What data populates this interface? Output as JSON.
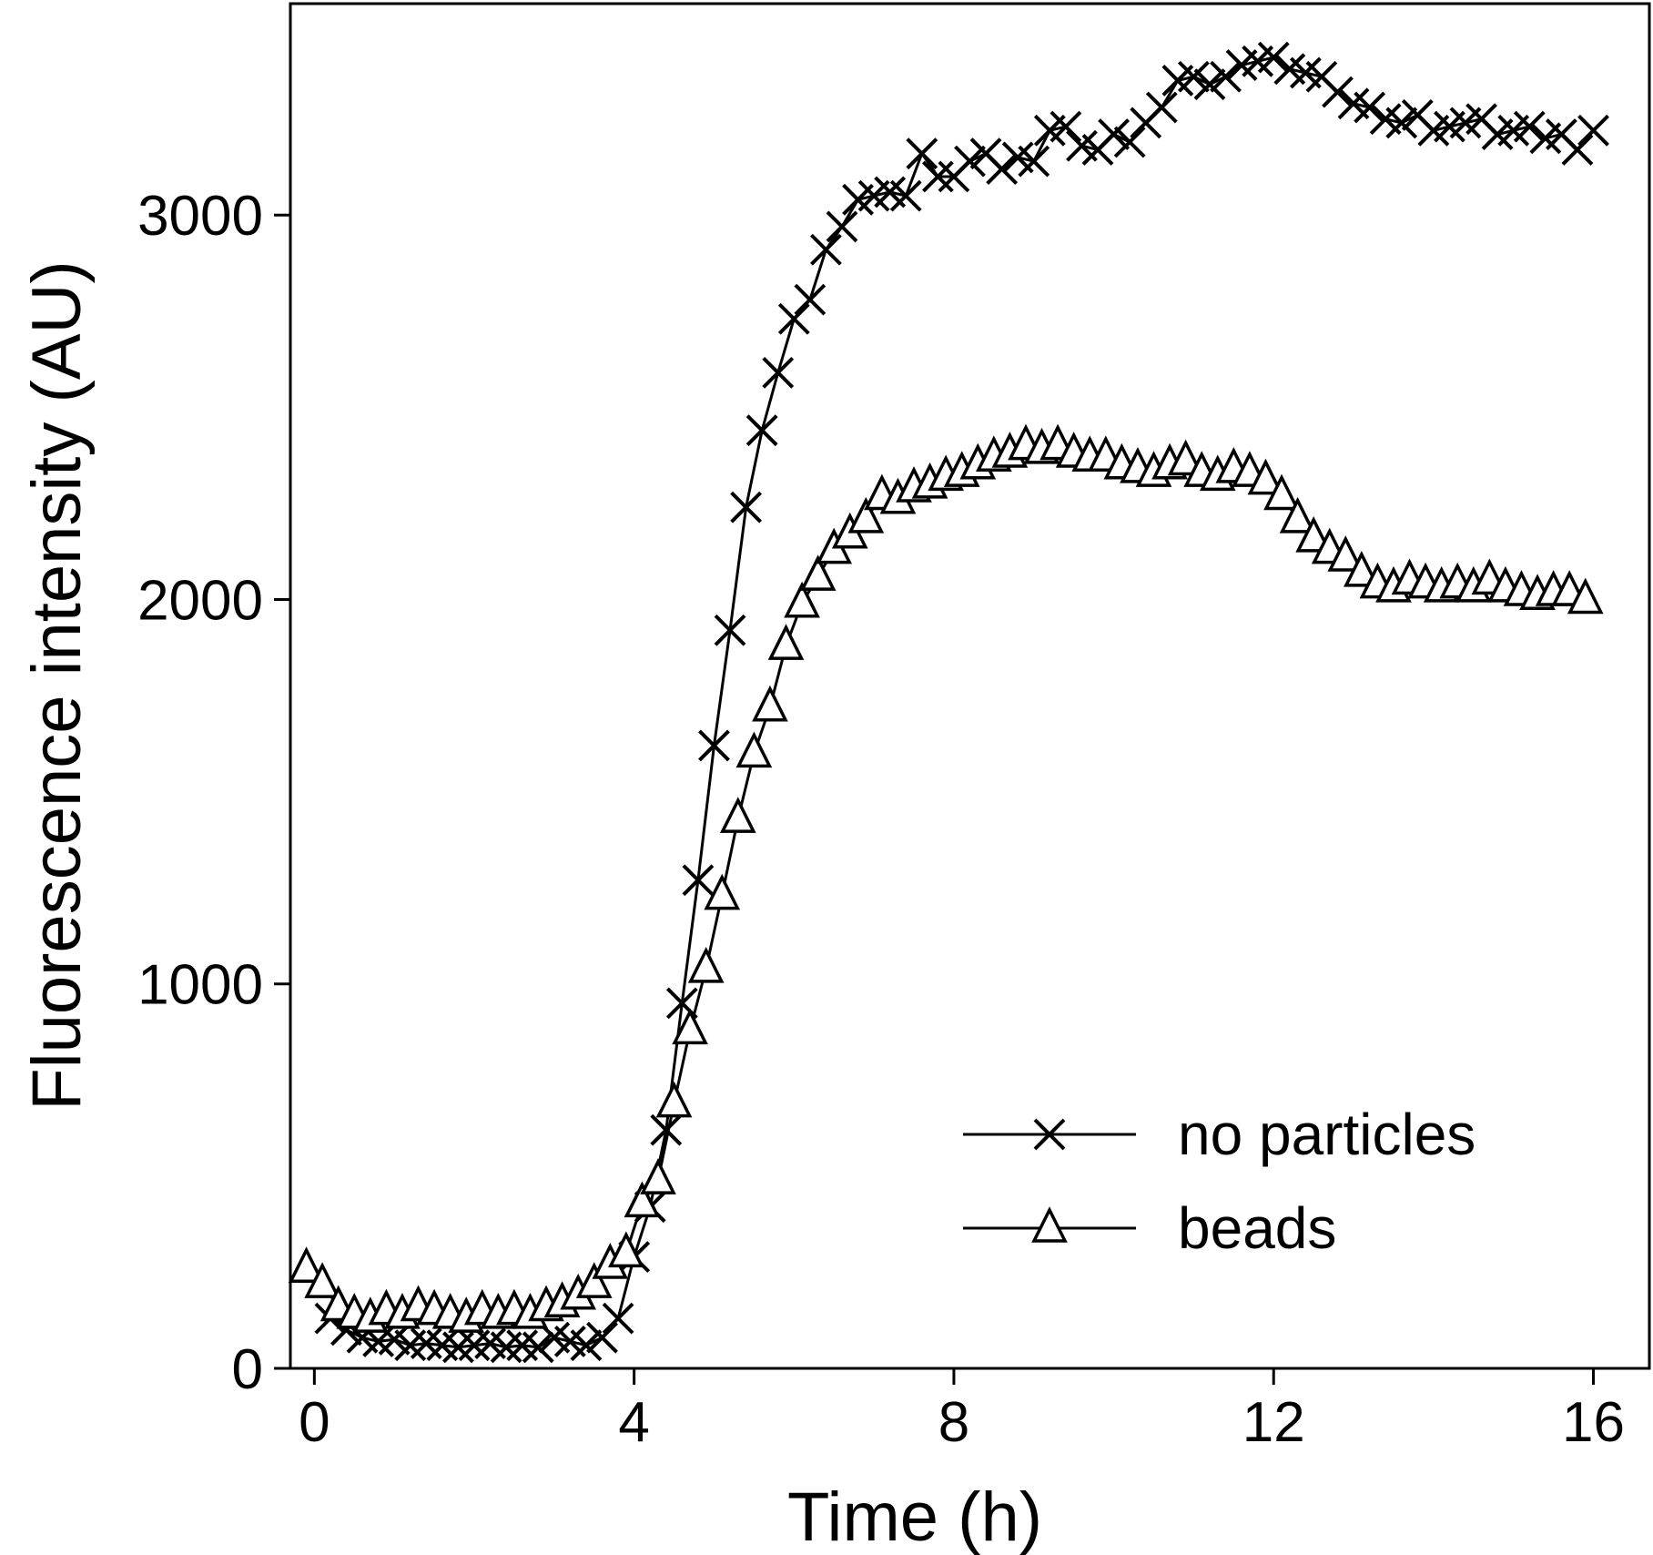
{
  "chart_data": {
    "type": "line",
    "xlabel": "Time (h)",
    "ylabel": "Fluorescence intensity (AU)",
    "xlim": [
      -0.3,
      16.7
    ],
    "ylim": [
      0,
      3550
    ],
    "xticks": [
      0,
      4,
      8,
      12,
      16
    ],
    "xtick_labels": [
      "0",
      "4",
      "8",
      "12",
      "16"
    ],
    "yticks": [
      0,
      1000,
      2000,
      3000
    ],
    "ytick_labels": [
      "0",
      "1000",
      "2000",
      "3000"
    ],
    "grid": false,
    "legend_position": "bottom-right",
    "series": [
      {
        "name": "no particles",
        "marker": "x",
        "x": [
          0.2,
          0.4,
          0.6,
          0.8,
          1.0,
          1.2,
          1.4,
          1.6,
          1.8,
          2.0,
          2.2,
          2.4,
          2.6,
          2.8,
          3.0,
          3.2,
          3.4,
          3.6,
          3.8,
          4.0,
          4.2,
          4.4,
          4.6,
          4.8,
          5.0,
          5.2,
          5.4,
          5.6,
          5.8,
          6.0,
          6.2,
          6.4,
          6.6,
          6.8,
          7.0,
          7.2,
          7.4,
          7.6,
          7.8,
          8.0,
          8.2,
          8.4,
          8.6,
          8.8,
          9.0,
          9.2,
          9.4,
          9.6,
          9.8,
          10.0,
          10.2,
          10.4,
          10.6,
          10.8,
          11.0,
          11.2,
          11.4,
          11.6,
          11.8,
          12.0,
          12.2,
          12.4,
          12.6,
          12.8,
          13.0,
          13.2,
          13.4,
          13.6,
          13.8,
          14.0,
          14.2,
          14.4,
          14.6,
          14.8,
          15.0,
          15.2,
          15.4,
          15.6,
          15.8,
          16.0
        ],
        "y": [
          130,
          100,
          80,
          70,
          75,
          60,
          65,
          60,
          55,
          60,
          65,
          55,
          60,
          55,
          80,
          70,
          60,
          80,
          130,
          290,
          420,
          620,
          950,
          1270,
          1620,
          1920,
          2240,
          2440,
          2590,
          2730,
          2780,
          2910,
          2970,
          3040,
          3050,
          3060,
          3050,
          3160,
          3100,
          3100,
          3140,
          3160,
          3120,
          3150,
          3140,
          3220,
          3230,
          3180,
          3170,
          3210,
          3190,
          3240,
          3280,
          3350,
          3360,
          3340,
          3360,
          3390,
          3400,
          3410,
          3380,
          3370,
          3360,
          3320,
          3290,
          3280,
          3250,
          3240,
          3260,
          3220,
          3230,
          3240,
          3250,
          3210,
          3220,
          3230,
          3200,
          3210,
          3170,
          3220
        ]
      },
      {
        "name": "beads",
        "marker": "triangle",
        "x": [
          -0.1,
          0.1,
          0.3,
          0.5,
          0.7,
          0.9,
          1.1,
          1.3,
          1.5,
          1.7,
          1.9,
          2.1,
          2.3,
          2.5,
          2.7,
          2.9,
          3.1,
          3.3,
          3.5,
          3.7,
          3.9,
          4.1,
          4.3,
          4.5,
          4.7,
          4.9,
          5.1,
          5.3,
          5.5,
          5.7,
          5.9,
          6.1,
          6.3,
          6.5,
          6.7,
          6.9,
          7.1,
          7.3,
          7.5,
          7.7,
          7.9,
          8.1,
          8.3,
          8.5,
          8.7,
          8.9,
          9.1,
          9.3,
          9.5,
          9.7,
          9.9,
          10.1,
          10.3,
          10.5,
          10.7,
          10.9,
          11.1,
          11.3,
          11.5,
          11.7,
          11.9,
          12.1,
          12.3,
          12.5,
          12.7,
          12.9,
          13.1,
          13.3,
          13.5,
          13.7,
          13.9,
          14.1,
          14.3,
          14.5,
          14.7,
          14.9,
          15.1,
          15.3,
          15.5,
          15.7,
          15.9
        ],
        "y": [
          260,
          220,
          160,
          140,
          130,
          150,
          140,
          160,
          150,
          140,
          130,
          150,
          140,
          150,
          140,
          160,
          170,
          190,
          220,
          270,
          300,
          430,
          490,
          690,
          880,
          1040,
          1230,
          1430,
          1600,
          1720,
          1880,
          1990,
          2060,
          2130,
          2170,
          2210,
          2270,
          2260,
          2290,
          2300,
          2320,
          2330,
          2350,
          2370,
          2380,
          2400,
          2390,
          2400,
          2380,
          2370,
          2370,
          2350,
          2340,
          2330,
          2350,
          2360,
          2330,
          2320,
          2340,
          2330,
          2310,
          2270,
          2210,
          2160,
          2130,
          2110,
          2070,
          2040,
          2030,
          2050,
          2040,
          2030,
          2040,
          2030,
          2050,
          2030,
          2020,
          2010,
          2020,
          2020,
          2000
        ]
      }
    ]
  }
}
